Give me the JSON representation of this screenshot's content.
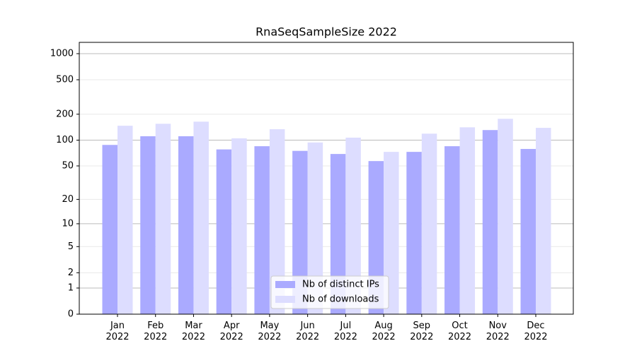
{
  "chart_data": {
    "type": "bar",
    "title": "RnaSeqSampleSize 2022",
    "categories": [
      "Jan\n2022",
      "Feb\n2022",
      "Mar\n2022",
      "Apr\n2022",
      "May\n2022",
      "Jun\n2022",
      "Jul\n2022",
      "Aug\n2022",
      "Sep\n2022",
      "Oct\n2022",
      "Nov\n2022",
      "Dec\n2022"
    ],
    "series": [
      {
        "name": "Nb of distinct IPs",
        "color": "#aaaaff",
        "values": [
          88,
          111,
          111,
          78,
          85,
          75,
          69,
          57,
          73,
          85,
          131,
          79
        ]
      },
      {
        "name": "Nb of downloads",
        "color": "#ddddff",
        "values": [
          147,
          155,
          164,
          105,
          134,
          94,
          107,
          73,
          119,
          141,
          177,
          139
        ]
      }
    ],
    "yscale": "log1p",
    "ylim": [
      0,
      1350
    ],
    "yticks": [
      0,
      1,
      2,
      5,
      10,
      20,
      50,
      100,
      200,
      500,
      1000
    ],
    "grid": true,
    "legend": "lower center"
  }
}
